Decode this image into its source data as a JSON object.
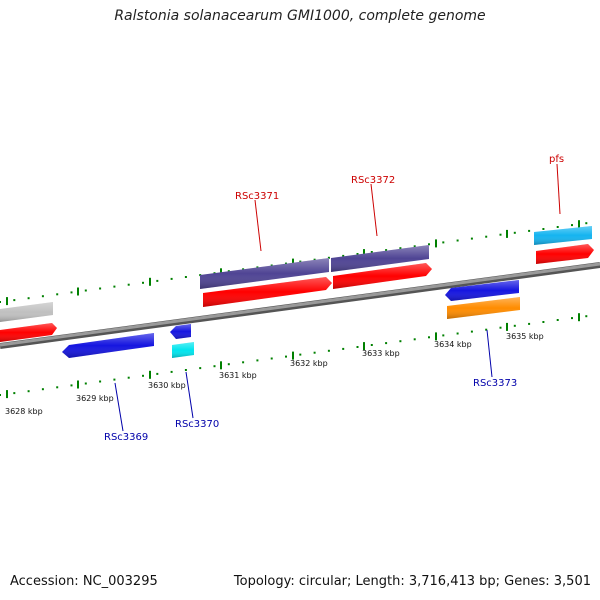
{
  "title": "Ralstonia solanacearum GMI1000, complete genome",
  "footer": {
    "accession": "Accession: NC_003295",
    "summary": "Topology: circular; Length: 3,716,413 bp; Genes: 3,501"
  },
  "ticks": [
    "3628 kbp",
    "3629 kbp",
    "3630 kbp",
    "3631 kbp",
    "3632 kbp",
    "3633 kbp",
    "3634 kbp",
    "3635 kbp"
  ],
  "gene_labels": {
    "forward": [
      "RSc3371",
      "RSc3372",
      "pfs"
    ],
    "reverse": [
      "RSc3369",
      "RSc3370",
      "RSc3373"
    ]
  },
  "colors": {
    "forward_label": "#cc0000",
    "reverse_label": "#0000aa",
    "cds_red": "#ff0000",
    "gene_purple": "#4f4494",
    "gene_blue": "#1515e0",
    "gene_cyan": "#00e5ee",
    "gene_skyblue": "#14b4f0",
    "gene_orange": "#ff8c00",
    "gene_gray": "#c0c0c0",
    "backbone": "#888888",
    "tick_green": "#008000"
  }
}
